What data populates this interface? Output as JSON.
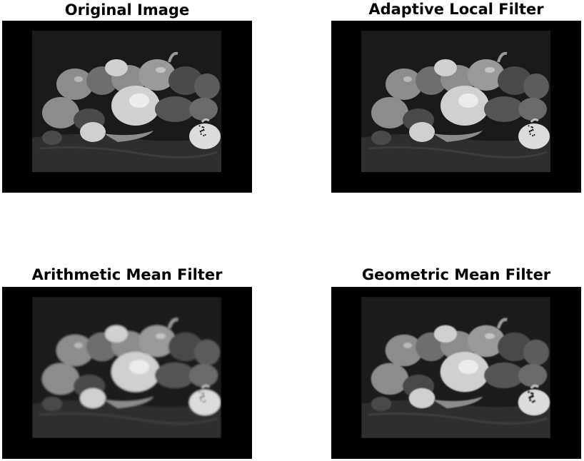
{
  "figure": {
    "background": "#ffffff",
    "panels": [
      {
        "id": "original",
        "title": "Original Image",
        "image": "peppers still life, grayscale, padded with black border",
        "variant": "original"
      },
      {
        "id": "adaptive",
        "title": "Adaptive Local Filter",
        "image": "peppers still life, grayscale, adaptive local noise reduction",
        "variant": "adaptive"
      },
      {
        "id": "arithmetic",
        "title": "Arithmetic Mean Filter",
        "image": "peppers still life, grayscale, arithmetic mean smoothing",
        "variant": "arithmetic"
      },
      {
        "id": "geometric",
        "title": "Geometric Mean Filter",
        "image": "peppers still life, grayscale, geometric mean smoothing",
        "variant": "geometric"
      }
    ]
  },
  "colors": {
    "frame": "#000000",
    "scene_background": "#1a1a1a",
    "cloth": "#2e2e2e",
    "pepper_light": "#d0d0d0",
    "pepper_mid": "#8c8c8c",
    "pepper_dark": "#4a4a4a",
    "garlic": "#dcdcdc",
    "speckle": "#000000"
  }
}
